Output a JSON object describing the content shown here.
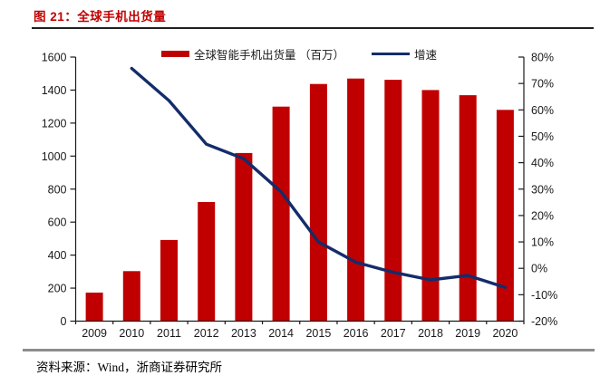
{
  "page": {
    "title": "图 21：全球手机出货量",
    "source": "资料来源：Wind，浙商证券研究所"
  },
  "colors": {
    "title_red": "#C00000",
    "bar_red": "#C00000",
    "line_navy": "#142C6A",
    "axis_black": "#1a1a1a",
    "text": "#1a1a1a",
    "top_rule": "#1f1f1f",
    "bottom_rule": "#8C8C8C"
  },
  "legend": {
    "items": [
      {
        "label": "全球智能手机出货量 （百万）",
        "swatch": "bar"
      },
      {
        "label": "增速",
        "swatch": "line"
      }
    ]
  },
  "chart_data": {
    "type": "bar",
    "combo": "bar+line",
    "title": "全球手机出货量",
    "categories": [
      "2009",
      "2010",
      "2011",
      "2012",
      "2013",
      "2014",
      "2015",
      "2016",
      "2017",
      "2018",
      "2019",
      "2020"
    ],
    "series": [
      {
        "name": "全球智能手机出货量 （百万）",
        "type": "bar",
        "axis": "left",
        "values": [
          173,
          303,
          492,
          722,
          1019,
          1300,
          1437,
          1470,
          1462,
          1400,
          1369,
          1280
        ]
      },
      {
        "name": "增速",
        "type": "line",
        "axis": "right",
        "values": [
          null,
          75.7,
          63.5,
          47,
          41.5,
          29,
          10,
          2.3,
          -1.5,
          -4.4,
          -2.7,
          -7.2
        ]
      }
    ],
    "left_axis": {
      "min": 0,
      "max": 1600,
      "step": 200,
      "tick_labels": [
        "0",
        "200",
        "400",
        "600",
        "800",
        "1000",
        "1200",
        "1400",
        "1600"
      ]
    },
    "right_axis": {
      "min": -20,
      "max": 80,
      "step": 10,
      "tick_labels": [
        "-20%",
        "-10%",
        "0%",
        "10%",
        "20%",
        "30%",
        "40%",
        "50%",
        "60%",
        "70%",
        "80%"
      ]
    },
    "grid": false,
    "legend_position": "top-center"
  }
}
